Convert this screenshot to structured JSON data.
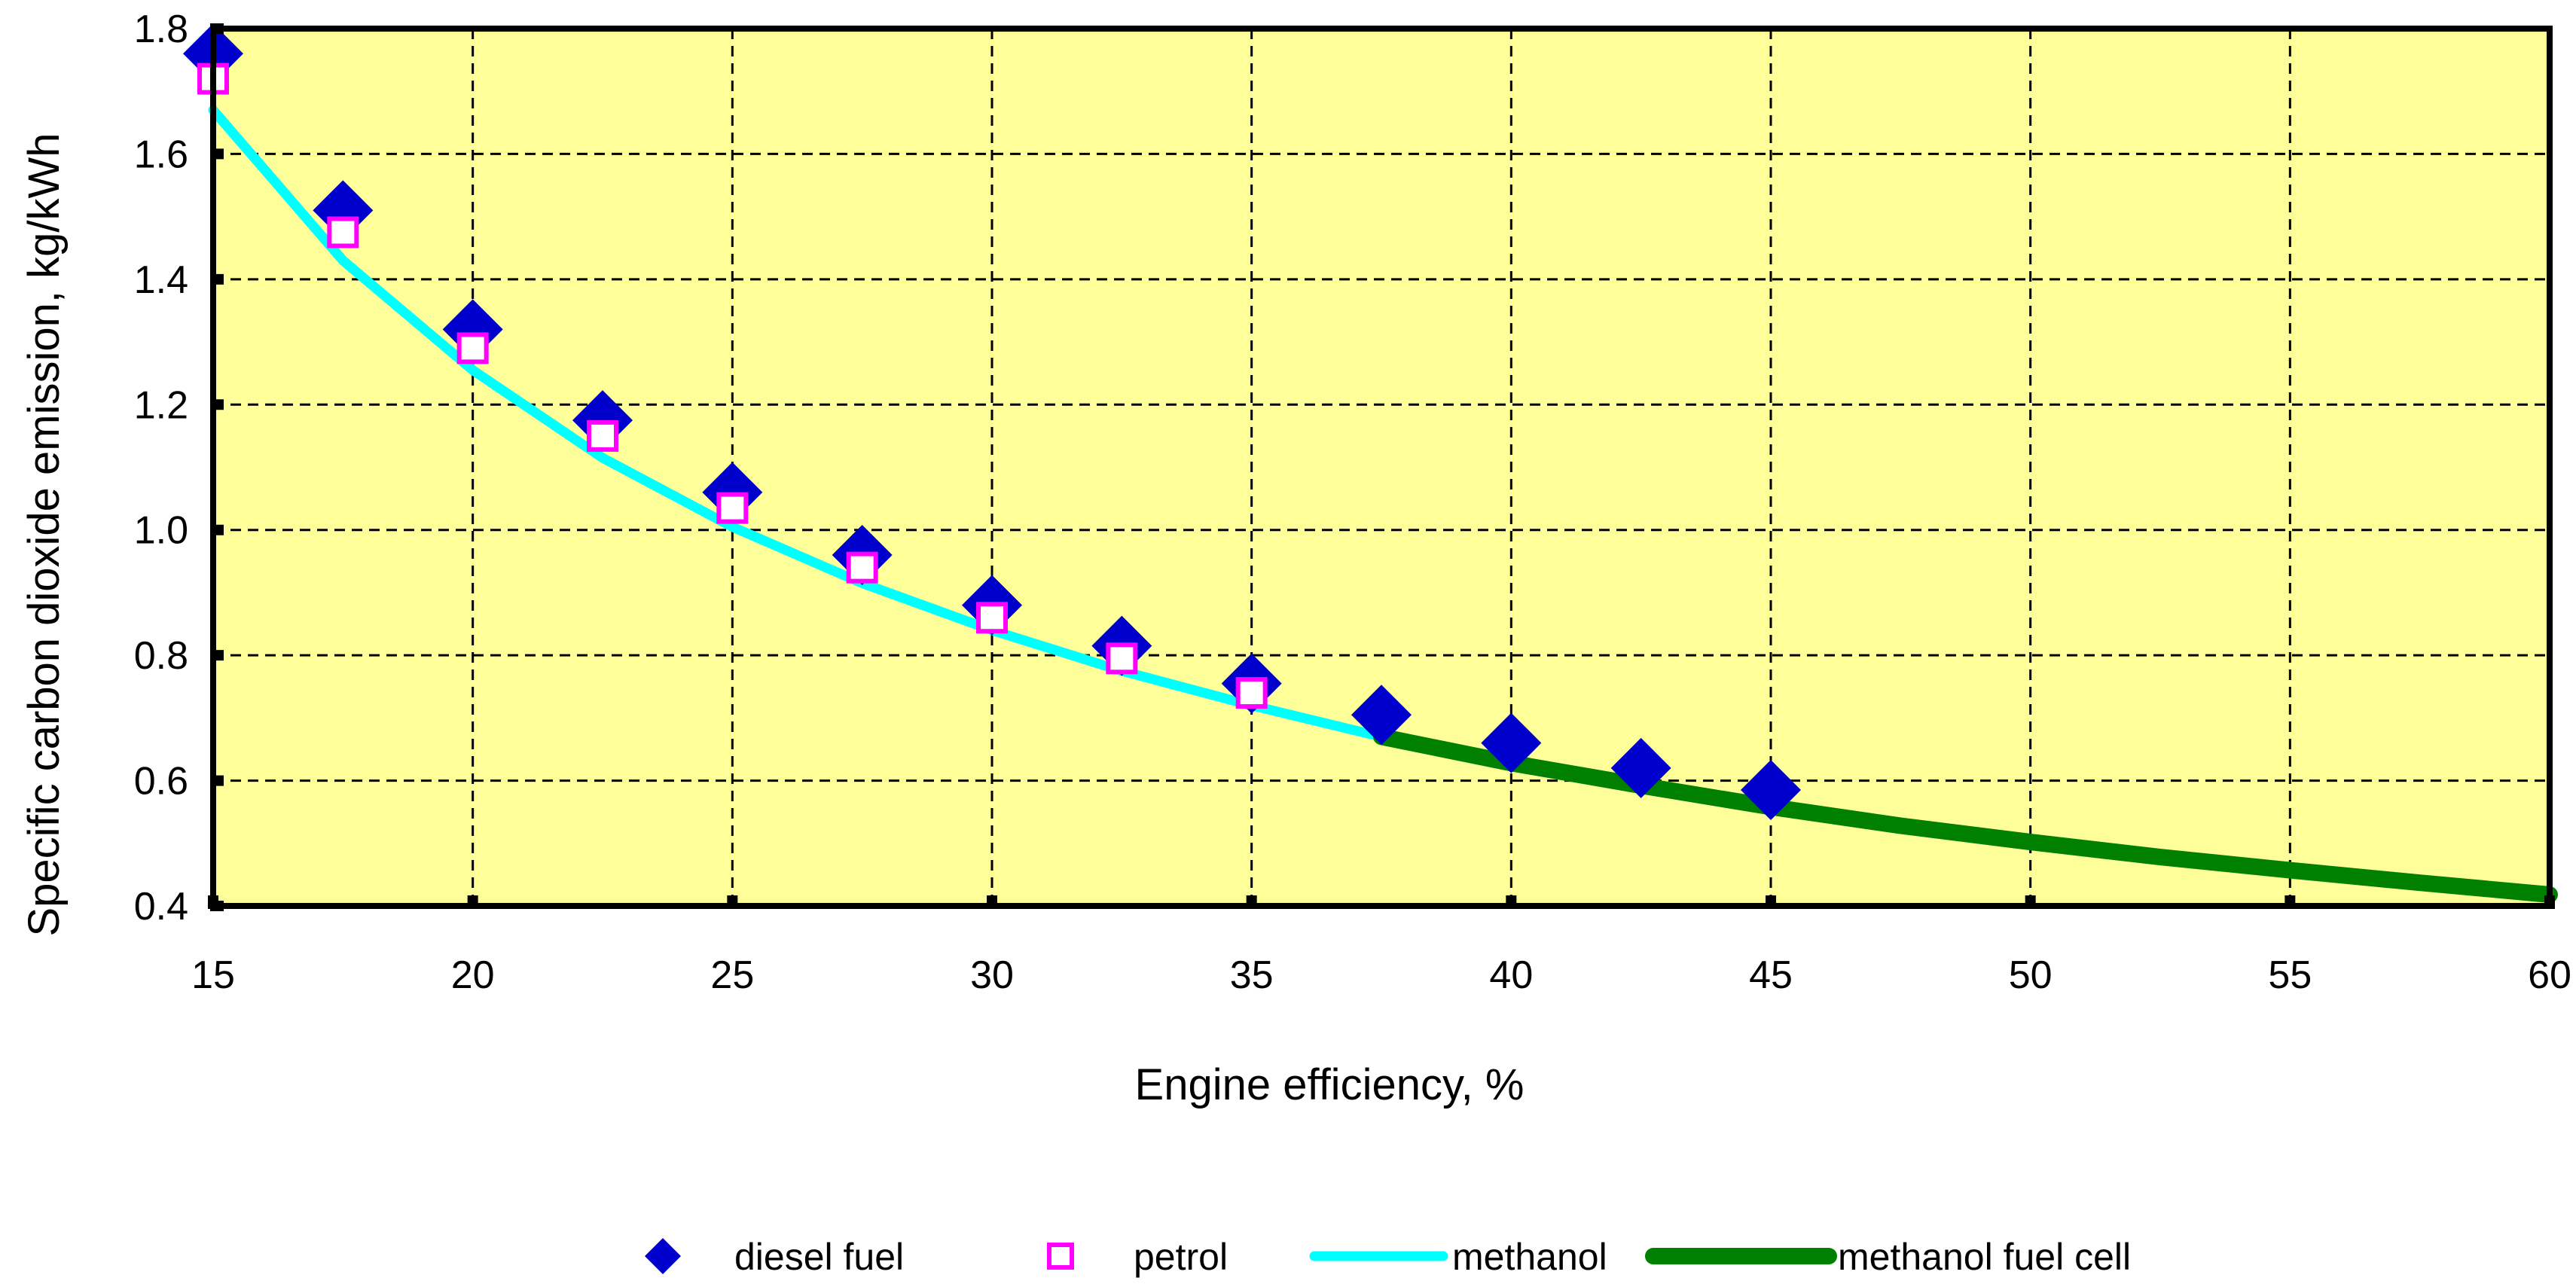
{
  "chart_data": {
    "type": "line",
    "title": "",
    "xlabel": "Engine efficiency, %",
    "ylabel": "Specific carbon dioxide emission, kg/kWh",
    "xlim": [
      15,
      60
    ],
    "ylim": [
      0.4,
      1.8
    ],
    "xticks": [
      15,
      20,
      25,
      30,
      35,
      40,
      45,
      50,
      55,
      60
    ],
    "yticks": [
      0.4,
      0.6,
      0.8,
      1.0,
      1.2,
      1.4,
      1.6,
      1.8
    ],
    "xtick_labels": [
      "15",
      "20",
      "25",
      "30",
      "35",
      "40",
      "45",
      "50",
      "55",
      "60"
    ],
    "ytick_labels": [
      "0.4",
      "0.6",
      "0.8",
      "1.0",
      "1.2",
      "1.4",
      "1.6",
      "1.8"
    ],
    "grid": true,
    "plot_background": "#ffff99",
    "legend_position": "bottom",
    "series": [
      {
        "name": "diesel fuel",
        "kind": "marker",
        "marker": "diamond",
        "color": "#0000cc",
        "x": [
          15,
          17.5,
          20,
          22.5,
          25,
          27.5,
          30,
          32.5,
          35,
          37.5,
          40,
          42.5,
          45
        ],
        "y": [
          1.76,
          1.51,
          1.32,
          1.175,
          1.06,
          0.96,
          0.88,
          0.815,
          0.755,
          0.705,
          0.66,
          0.62,
          0.585
        ]
      },
      {
        "name": "petrol",
        "kind": "marker",
        "marker": "square",
        "color": "#ff00ff",
        "x": [
          15,
          17.5,
          20,
          22.5,
          25,
          27.5,
          30,
          32.5,
          35
        ],
        "y": [
          1.72,
          1.475,
          1.29,
          1.15,
          1.035,
          0.94,
          0.86,
          0.795,
          0.74
        ]
      },
      {
        "name": "methanol",
        "kind": "line",
        "color": "#00ffff",
        "x": [
          15,
          17.5,
          20,
          22.5,
          25,
          27.5,
          30,
          32.5,
          35,
          37.5
        ],
        "y": [
          1.67,
          1.43,
          1.255,
          1.115,
          1.005,
          0.915,
          0.84,
          0.775,
          0.72,
          0.67
        ]
      },
      {
        "name": "methanol fuel cell",
        "kind": "line",
        "color": "#008000",
        "x": [
          37.5,
          40,
          42.5,
          45,
          47.5,
          50,
          52.5,
          55,
          57.5,
          60
        ],
        "y": [
          0.67,
          0.628,
          0.592,
          0.558,
          0.528,
          0.502,
          0.478,
          0.457,
          0.437,
          0.418
        ]
      }
    ]
  }
}
